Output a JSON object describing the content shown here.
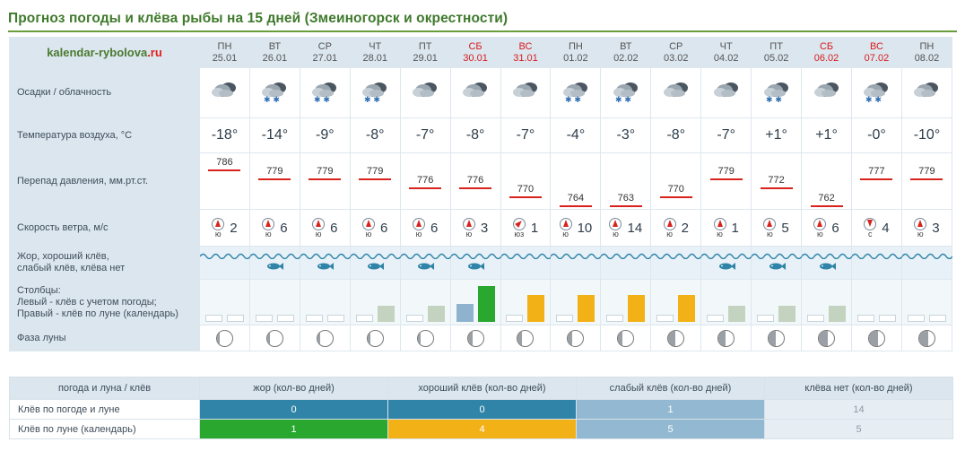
{
  "title": "Прогноз погоды и клёва рыбы на 15 дней (Змеиногорск и окрестности)",
  "logo": {
    "main": "kalendar-rybolova",
    "tld": ".ru"
  },
  "labels": {
    "precip": "Осадки / облачность",
    "temp": "Температура воздуха, °С",
    "pressure": "Перепад давления, мм.рт.ст.",
    "wind": "Скорость ветра, м/с",
    "bite_l1": "Жор, хороший клёв,",
    "bite_l2": "слабый клёв, клёва нет",
    "bars_l1": "Столбцы:",
    "bars_l2": "Левый - клёв с учетом погоды;",
    "bars_l3": "Правый - клёв по луне (календарь)",
    "moon": "Фаза луны"
  },
  "days": [
    {
      "dow": "ПН",
      "date": "25.01",
      "weekend": false,
      "sky": "cloudy",
      "temp": "-18°",
      "pressure": "786",
      "pl": 0,
      "wdir": "ю",
      "wind": "2",
      "fish": false,
      "lb": "empty",
      "rb": "empty",
      "moon": "full"
    },
    {
      "dow": "ВТ",
      "date": "26.01",
      "weekend": false,
      "sky": "snow",
      "temp": "-14°",
      "pressure": "779",
      "pl": 1,
      "wdir": "ю",
      "wind": "6",
      "fish": true,
      "lb": "empty",
      "rb": "empty",
      "moon": "full"
    },
    {
      "dow": "СР",
      "date": "27.01",
      "weekend": false,
      "sky": "snow",
      "temp": "-9°",
      "pressure": "779",
      "pl": 1,
      "wdir": "ю",
      "wind": "6",
      "fish": true,
      "lb": "empty",
      "rb": "empty",
      "moon": "full"
    },
    {
      "dow": "ЧТ",
      "date": "28.01",
      "weekend": false,
      "sky": "snow",
      "temp": "-8°",
      "pressure": "779",
      "pl": 1,
      "wdir": "ю",
      "wind": "6",
      "fish": true,
      "lb": "empty",
      "rb": "weak",
      "moon": "full"
    },
    {
      "dow": "ПТ",
      "date": "29.01",
      "weekend": false,
      "sky": "cloudy",
      "temp": "-7°",
      "pressure": "776",
      "pl": 2,
      "wdir": "ю",
      "wind": "6",
      "fish": true,
      "lb": "empty",
      "rb": "weak",
      "moon": "full"
    },
    {
      "dow": "СБ",
      "date": "30.01",
      "weekend": true,
      "sky": "cloudy",
      "temp": "-8°",
      "pressure": "776",
      "pl": 2,
      "wdir": "ю",
      "wind": "3",
      "fish": true,
      "lb": "weak2",
      "rb": "green",
      "moon": "wane1"
    },
    {
      "dow": "ВС",
      "date": "31.01",
      "weekend": true,
      "sky": "cloudy",
      "temp": "-7°",
      "pressure": "770",
      "pl": 3,
      "wdir": "юз",
      "wind": "1",
      "fish": false,
      "lb": "empty",
      "rb": "orange",
      "moon": "wane1"
    },
    {
      "dow": "ПН",
      "date": "01.02",
      "weekend": false,
      "sky": "snow",
      "temp": "-4°",
      "pressure": "764",
      "pl": 4,
      "wdir": "ю",
      "wind": "10",
      "fish": false,
      "lb": "empty",
      "rb": "orange",
      "moon": "wane1"
    },
    {
      "dow": "ВТ",
      "date": "02.02",
      "weekend": false,
      "sky": "snow",
      "temp": "-3°",
      "pressure": "763",
      "pl": 4,
      "wdir": "ю",
      "wind": "14",
      "fish": false,
      "lb": "empty",
      "rb": "orange",
      "moon": "wane1"
    },
    {
      "dow": "СР",
      "date": "03.02",
      "weekend": false,
      "sky": "cloudy",
      "temp": "-8°",
      "pressure": "770",
      "pl": 3,
      "wdir": "ю",
      "wind": "2",
      "fish": false,
      "lb": "empty",
      "rb": "orange",
      "moon": "wane2"
    },
    {
      "dow": "ЧТ",
      "date": "04.02",
      "weekend": false,
      "sky": "cloudy",
      "temp": "-7°",
      "pressure": "779",
      "pl": 1,
      "wdir": "ю",
      "wind": "1",
      "fish": true,
      "lb": "empty",
      "rb": "weak",
      "moon": "wane2"
    },
    {
      "dow": "ПТ",
      "date": "05.02",
      "weekend": false,
      "sky": "snow",
      "temp": "+1°",
      "pressure": "772",
      "pl": 2,
      "wdir": "ю",
      "wind": "5",
      "fish": true,
      "lb": "empty",
      "rb": "weak",
      "moon": "wane2"
    },
    {
      "dow": "СБ",
      "date": "06.02",
      "weekend": true,
      "sky": "cloudy",
      "temp": "+1°",
      "pressure": "762",
      "pl": 4,
      "wdir": "ю",
      "wind": "6",
      "fish": true,
      "lb": "empty",
      "rb": "weak",
      "moon": "wane3"
    },
    {
      "dow": "ВС",
      "date": "07.02",
      "weekend": true,
      "sky": "snow",
      "temp": "-0°",
      "pressure": "777",
      "pl": 1,
      "wdir": "с",
      "wind": "4",
      "fish": false,
      "lb": "empty",
      "rb": "empty",
      "moon": "wane3"
    },
    {
      "dow": "ПН",
      "date": "08.02",
      "weekend": false,
      "sky": "cloudy",
      "temp": "-10°",
      "pressure": "779",
      "pl": 1,
      "wdir": "ю",
      "wind": "3",
      "fish": false,
      "lb": "empty",
      "rb": "empty",
      "moon": "wane3"
    }
  ],
  "summary": {
    "headers": [
      "погода и луна / клёв",
      "жор (кол-во дней)",
      "хороший клёв (кол-во дней)",
      "слабый клёв (кол-во дней)",
      "клёва нет (кол-во дней)"
    ],
    "rows": [
      {
        "label": "Клёв по погоде и луне",
        "values": [
          "0",
          "0",
          "1",
          "14"
        ]
      },
      {
        "label": "Клёв по луне (календарь)",
        "values": [
          "1",
          "4",
          "5",
          "5"
        ]
      }
    ]
  },
  "colors": {
    "zhor": "#2f84a8",
    "good": "#f2b116",
    "weak": "#93b9d2",
    "none": "#e7eef3",
    "green": "#29a72f",
    "accent_green": "#3f7a2c",
    "pressure_line": "#d8231d"
  }
}
